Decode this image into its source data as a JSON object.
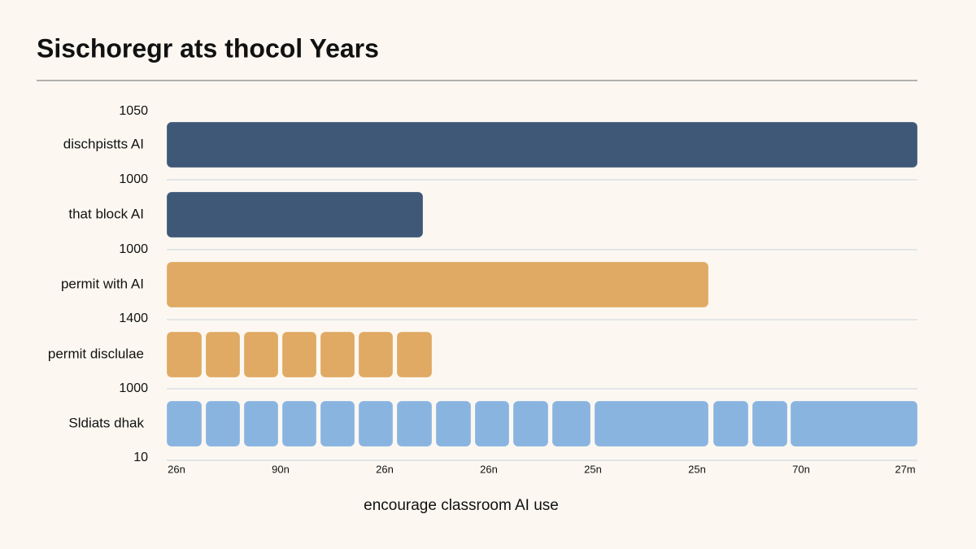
{
  "title": "Sischoregr ats thocol Years",
  "row_labels": [
    "dischpistts AI",
    "that block AI",
    "permit with AI",
    "permit disclulae",
    "Sldiats dhak"
  ],
  "y_labels": [
    "1050",
    "1000",
    "1000",
    "1400",
    "1000",
    "10"
  ],
  "x_labels": [
    "26n",
    "90n",
    "26n",
    "26n",
    "25n",
    "25n",
    "70n",
    "27m"
  ],
  "x_axis_title": "encourage classroom AI use"
}
